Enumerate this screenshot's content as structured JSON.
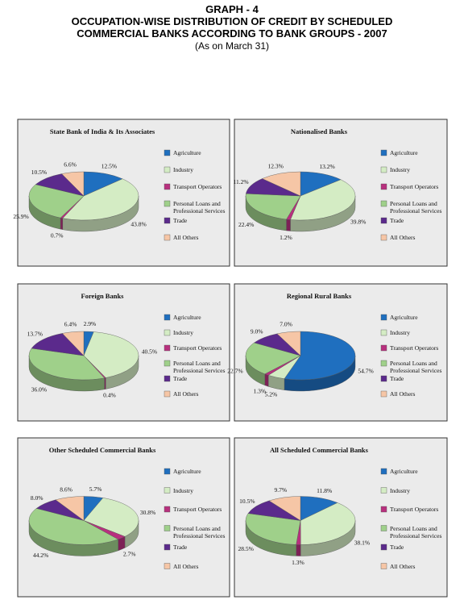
{
  "header": {
    "title": "GRAPH - 4",
    "lines": [
      "OCCUPATION-WISE DISTRIBUTION OF CREDIT BY SCHEDULED",
      "COMMERCIAL BANKS ACCORDING TO BANK GROUPS - 2007"
    ],
    "note": "(As on March 31)"
  },
  "chart_data": [
    {
      "type": "pie",
      "title": "State Bank of India & Its Associates",
      "categories": [
        "Agriculture",
        "Industry",
        "Transport Operators",
        "Personal Loans and Professional Services",
        "Trade",
        "All Others"
      ],
      "colors": [
        "#1f6fbf",
        "#d4ecc4",
        "#b8307e",
        "#9fd08a",
        "#5b2a8c",
        "#f6c6a6"
      ],
      "values": [
        12.5,
        43.8,
        0.7,
        25.9,
        10.5,
        6.6
      ],
      "value_labels": [
        "12.5%",
        "43.8%",
        "0.7%",
        "25.9%",
        "10.5%",
        "6.6%"
      ]
    },
    {
      "type": "pie",
      "title": "Nationalised Banks",
      "categories": [
        "Agriculture",
        "Industry",
        "Transport Operators",
        "Personal Loans and Professional Services",
        "Trade",
        "All Others"
      ],
      "colors": [
        "#1f6fbf",
        "#d4ecc4",
        "#b8307e",
        "#9fd08a",
        "#5b2a8c",
        "#f6c6a6"
      ],
      "values": [
        13.2,
        39.8,
        1.2,
        22.4,
        11.2,
        12.3
      ],
      "value_labels": [
        "13.2%",
        "39.8%",
        "1.2%",
        "22.4%",
        "11.2%",
        "12.3%"
      ]
    },
    {
      "type": "pie",
      "title": "Foreign Banks",
      "categories": [
        "Agriculture",
        "Industry",
        "Transport Operators",
        "Personal Loans and Professional Services",
        "Trade",
        "All Others"
      ],
      "colors": [
        "#1f6fbf",
        "#d4ecc4",
        "#b8307e",
        "#9fd08a",
        "#5b2a8c",
        "#f6c6a6"
      ],
      "values": [
        2.9,
        40.5,
        0.4,
        36.0,
        13.7,
        6.4
      ],
      "value_labels": [
        "2.9%",
        "40.5%",
        "0.4%",
        "36.0%",
        "13.7%",
        "6.4%"
      ]
    },
    {
      "type": "pie",
      "title": "Regional Rural Banks",
      "categories": [
        "Agriculture",
        "Industry",
        "Transport Operators",
        "Personal Loans and Professional Services",
        "Trade",
        "All Others"
      ],
      "colors": [
        "#1f6fbf",
        "#d4ecc4",
        "#b8307e",
        "#9fd08a",
        "#5b2a8c",
        "#f6c6a6"
      ],
      "values": [
        54.7,
        5.2,
        1.3,
        22.7,
        9.0,
        7.0
      ],
      "value_labels": [
        "54.7%",
        "5.2%",
        "1.3%",
        "22.7%",
        "9.0%",
        "7.0%"
      ]
    },
    {
      "type": "pie",
      "title": "Other Scheduled Commercial Banks",
      "categories": [
        "Agriculture",
        "Industry",
        "Transport Operators",
        "Personal Loans and Professional Services",
        "Trade",
        "All Others"
      ],
      "colors": [
        "#1f6fbf",
        "#d4ecc4",
        "#b8307e",
        "#9fd08a",
        "#5b2a8c",
        "#f6c6a6"
      ],
      "values": [
        5.7,
        30.8,
        2.7,
        44.2,
        8.0,
        8.6
      ],
      "value_labels": [
        "5.7%",
        "30.8%",
        "2.7%",
        "44.2%",
        "8.0%",
        "8.6%"
      ]
    },
    {
      "type": "pie",
      "title": "All Scheduled Commercial Banks",
      "categories": [
        "Agriculture",
        "Industry",
        "Transport Operators",
        "Personal Loans and Professional Services",
        "Trade",
        "All Others"
      ],
      "colors": [
        "#1f6fbf",
        "#d4ecc4",
        "#b8307e",
        "#9fd08a",
        "#5b2a8c",
        "#f6c6a6"
      ],
      "values": [
        11.8,
        38.1,
        1.3,
        28.5,
        10.5,
        9.7
      ],
      "value_labels": [
        "11.8%",
        "38.1%",
        "1.3%",
        "28.5%",
        "10.5%",
        "9.7%"
      ]
    }
  ]
}
